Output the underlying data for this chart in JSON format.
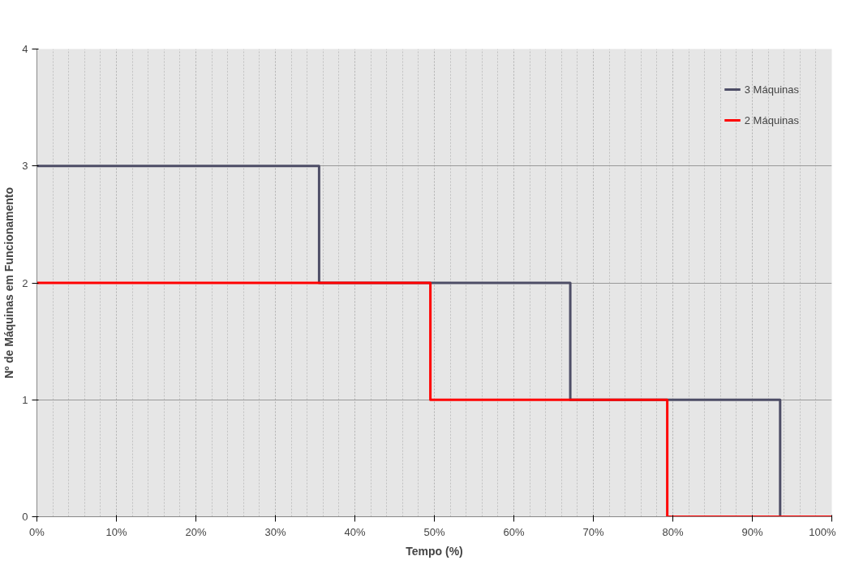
{
  "chart_data": {
    "type": "step",
    "xlabel": "Tempo (%)",
    "ylabel": "Nº de Máquinas em Funcionamento",
    "series": [
      {
        "name": "3 Máquinas",
        "color": "#4d4d66",
        "x": [
          0,
          35.5,
          67.1,
          93.5,
          100
        ],
        "values": [
          3,
          2,
          1,
          0,
          0
        ]
      },
      {
        "name": "2 Máquinas",
        "color": "#ff0000",
        "x": [
          0,
          49.5,
          79.3,
          100
        ],
        "values": [
          2,
          1,
          0,
          0
        ]
      }
    ],
    "xlim": [
      0,
      100
    ],
    "ylim": [
      0,
      4
    ],
    "xticks": [
      {
        "value": 0,
        "label": "0%"
      },
      {
        "value": 10,
        "label": "10%"
      },
      {
        "value": 20,
        "label": "20%"
      },
      {
        "value": 30,
        "label": "30%"
      },
      {
        "value": 40,
        "label": "40%"
      },
      {
        "value": 50,
        "label": "50%"
      },
      {
        "value": 60,
        "label": "60%"
      },
      {
        "value": 70,
        "label": "70%"
      },
      {
        "value": 80,
        "label": "80%"
      },
      {
        "value": 90,
        "label": "90%"
      },
      {
        "value": 100,
        "label": "100%"
      }
    ],
    "yticks": [
      0,
      1,
      2,
      3,
      4
    ],
    "grid": true,
    "legend": "top right",
    "line_style": "solid",
    "marker": "none"
  }
}
